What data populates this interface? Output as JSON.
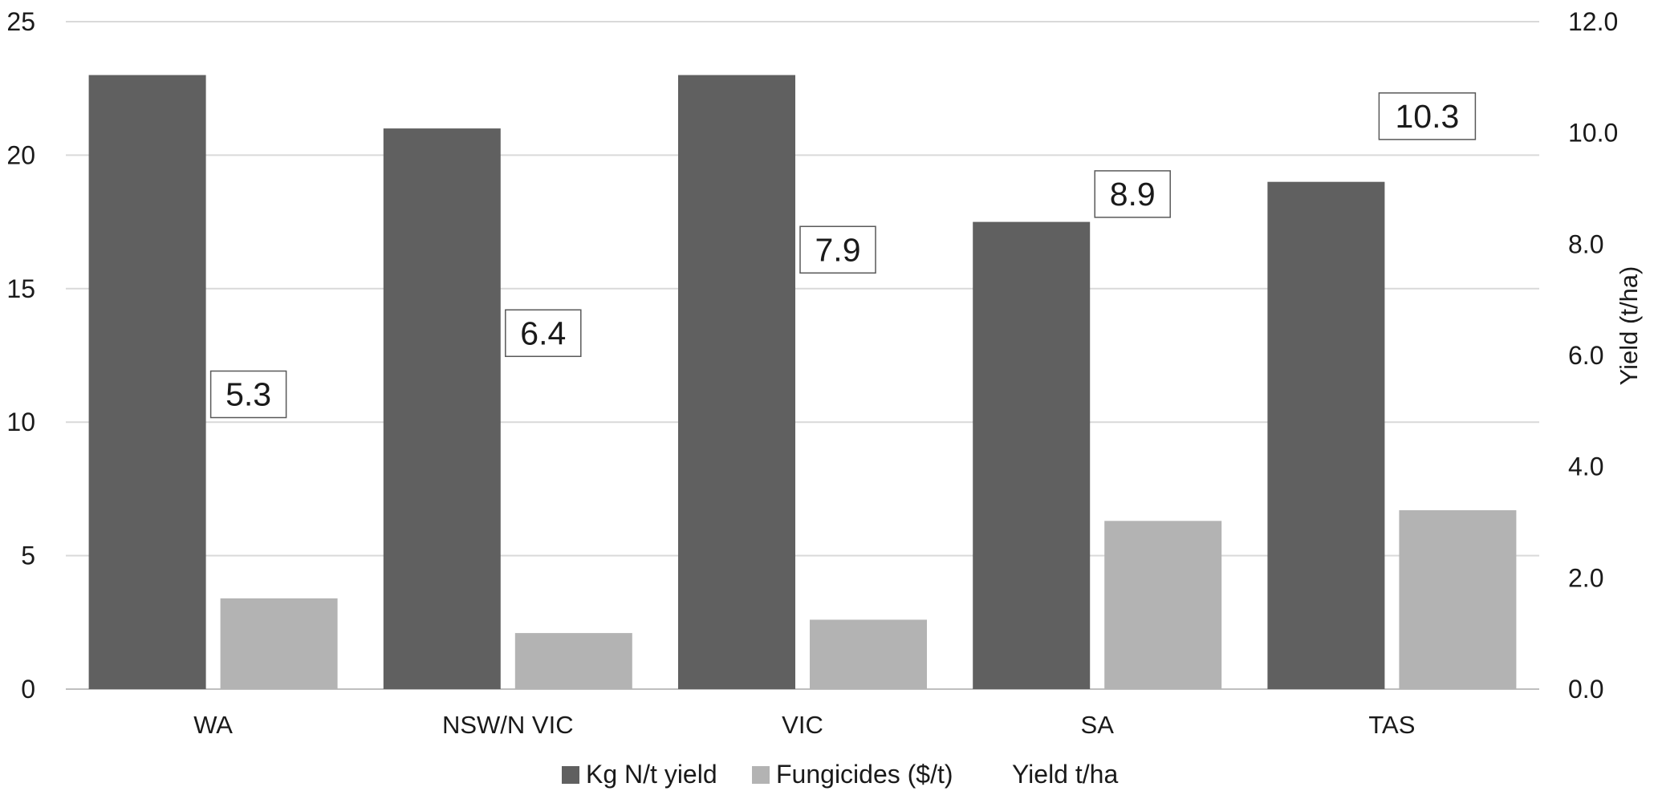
{
  "chart_data": {
    "type": "bar",
    "title": "",
    "categories": [
      "WA",
      "NSW/N VIC",
      "VIC",
      "SA",
      "TAS"
    ],
    "series": [
      {
        "name": "Kg N/t yield",
        "axis": "left",
        "color": "#606060",
        "values": [
          23.0,
          21.0,
          23.0,
          17.5,
          19.0
        ]
      },
      {
        "name": "Fungicides ($/t)",
        "axis": "left",
        "color": "#b3b3b3",
        "values": [
          3.4,
          2.1,
          2.6,
          6.3,
          6.7
        ]
      },
      {
        "name": "Yield t/ha",
        "axis": "right",
        "type": "label",
        "values": [
          5.3,
          6.4,
          7.9,
          8.9,
          10.3
        ],
        "value_labels": [
          "5.3",
          "6.4",
          "7.9",
          "8.9",
          "10.3"
        ]
      }
    ],
    "y_left": {
      "min": 0,
      "max": 25,
      "ticks": [
        "0",
        "5",
        "10",
        "15",
        "20",
        "25"
      ],
      "label": ""
    },
    "y_right": {
      "min": 0,
      "max": 12,
      "ticks": [
        "0.0",
        "2.0",
        "4.0",
        "6.0",
        "8.0",
        "10.0",
        "12.0"
      ],
      "label": "Yield (t/ha)"
    },
    "xlabel": "",
    "grid": true,
    "legend_position": "bottom"
  }
}
